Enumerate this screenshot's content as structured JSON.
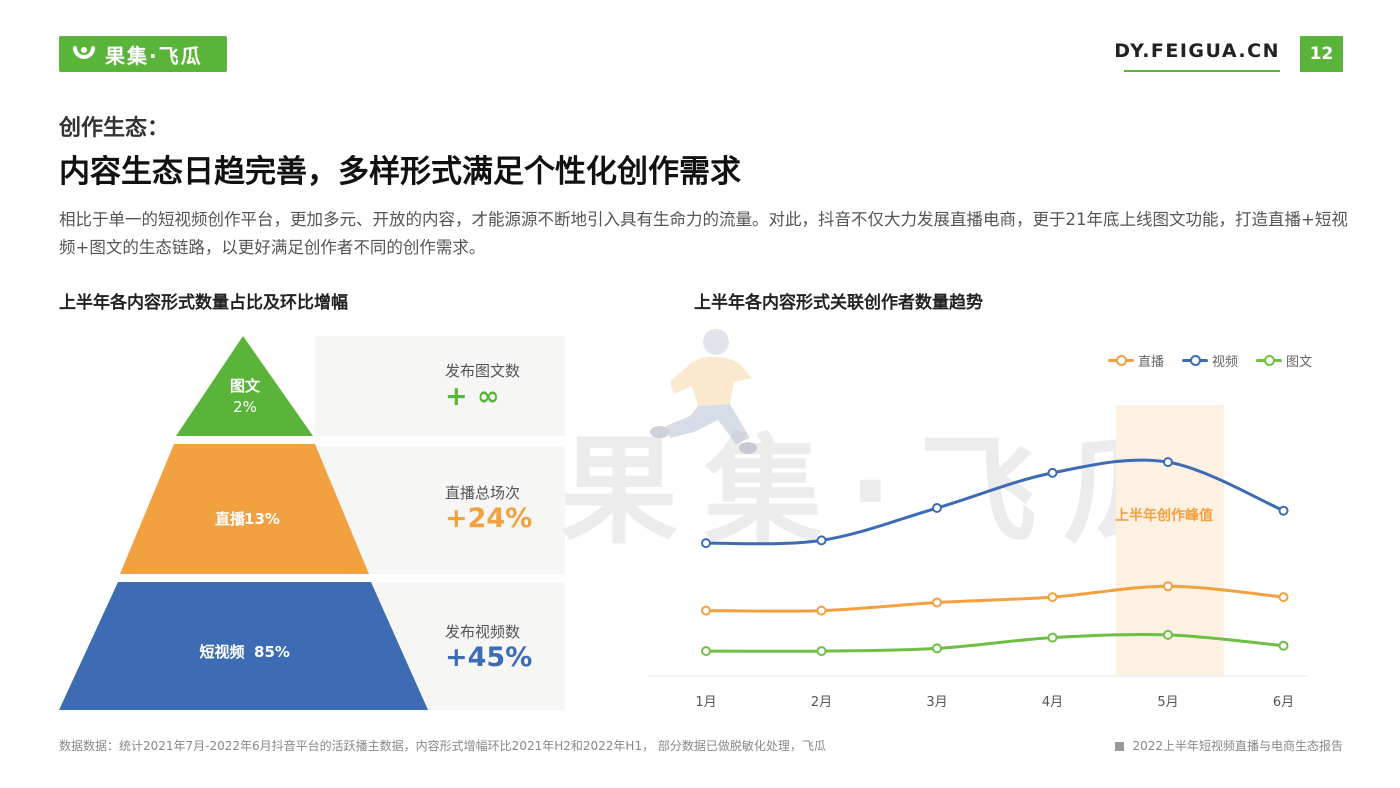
{
  "header": {
    "logo_text": "果集·飞瓜",
    "site_url": "DY.FEIGUA.CN",
    "page_number": "12",
    "brand_color": "#5bb43a"
  },
  "heading": {
    "kicker": "创作生态：",
    "title": "内容生态日趋完善，多样形式满足个性化创作需求",
    "intro": "相比于单一的短视频创作平台，更加多元、开放的内容，才能源源不断地引入具有生命力的流量。对此，抖音不仅大力发展直播电商，更于21年底上线图文功能，打造直播+短视频+图文的生态链路，以更好满足创作者不同的创作需求。"
  },
  "left_section": {
    "title": "上半年各内容形式数量占比及环比增幅",
    "pyramid": [
      {
        "name": "图文",
        "share": "2%",
        "color": "#5bb43a"
      },
      {
        "name": "直播",
        "share": "13%",
        "color": "#f2a141"
      },
      {
        "name": "短视频",
        "share": "85%",
        "color": "#3d6cb5"
      }
    ],
    "stats": [
      {
        "label": "发布图文数",
        "value": "+ ∞",
        "color": "#5bb43a"
      },
      {
        "label": "直播总场次",
        "value": "+24%",
        "color": "#f2a141"
      },
      {
        "label": "发布视频数",
        "value": "+45%",
        "color": "#3d6cb5"
      }
    ]
  },
  "right_section": {
    "title": "上半年各内容形式关联创作者数量趋势",
    "watermark": "果集·飞瓜",
    "peak_label": "上半年创作峰值"
  },
  "chart_data": {
    "type": "line",
    "title": "上半年各内容形式关联创作者数量趋势",
    "categories": [
      "1月",
      "2月",
      "3月",
      "4月",
      "5月",
      "6月"
    ],
    "ylim": [
      0,
      100
    ],
    "grid": false,
    "legend_position": "top-right",
    "highlight": {
      "category": "5月",
      "label": "上半年创作峰值"
    },
    "series": [
      {
        "name": "直播",
        "color": "#f2a141",
        "values": [
          22,
          22,
          25,
          27,
          31,
          27
        ]
      },
      {
        "name": "视频",
        "color": "#3d6cb5",
        "values": [
          47,
          48,
          60,
          73,
          77,
          59
        ]
      },
      {
        "name": "图文",
        "color": "#6fbf45",
        "values": [
          7,
          7,
          8,
          12,
          13,
          9
        ]
      }
    ]
  },
  "footer": {
    "source": "数据数据：统计2021年7月-2022年6月抖音平台的活跃播主数据，内容形式增幅环比2021年H2和2022年H1， 部分数据已做脱敏化处理，飞瓜",
    "report_name": "2022上半年短视频直播与电商生态报告"
  }
}
